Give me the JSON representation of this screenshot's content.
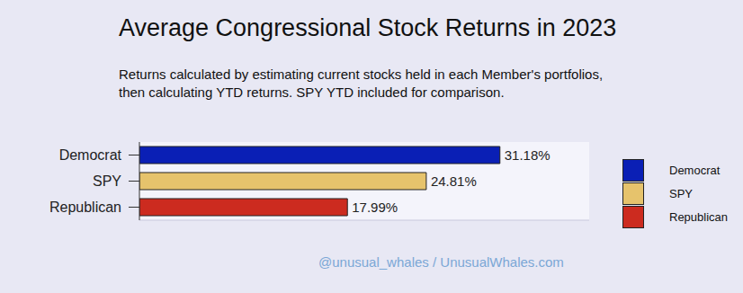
{
  "chart_data": {
    "type": "bar",
    "orientation": "horizontal",
    "title": "Average Congressional Stock Returns in 2023",
    "subtitle": "Returns calculated by estimating current stocks held in each Member's portfolios, then calculating YTD returns. SPY YTD included for comparison.",
    "annotations": [
      "@unusual_whales / UnusualWhales.com"
    ],
    "categories": [
      "Democrat",
      "SPY",
      "Republican"
    ],
    "values": [
      31.18,
      24.81,
      17.99
    ],
    "value_labels": [
      "31.18%",
      "24.81%",
      "17.99%"
    ],
    "colors": [
      "#0a1fb5",
      "#e6c36c",
      "#cc2b1f"
    ],
    "xlim": [
      0,
      38.9
    ],
    "data_labels": true,
    "tick_labels": "y",
    "legend": "right"
  }
}
